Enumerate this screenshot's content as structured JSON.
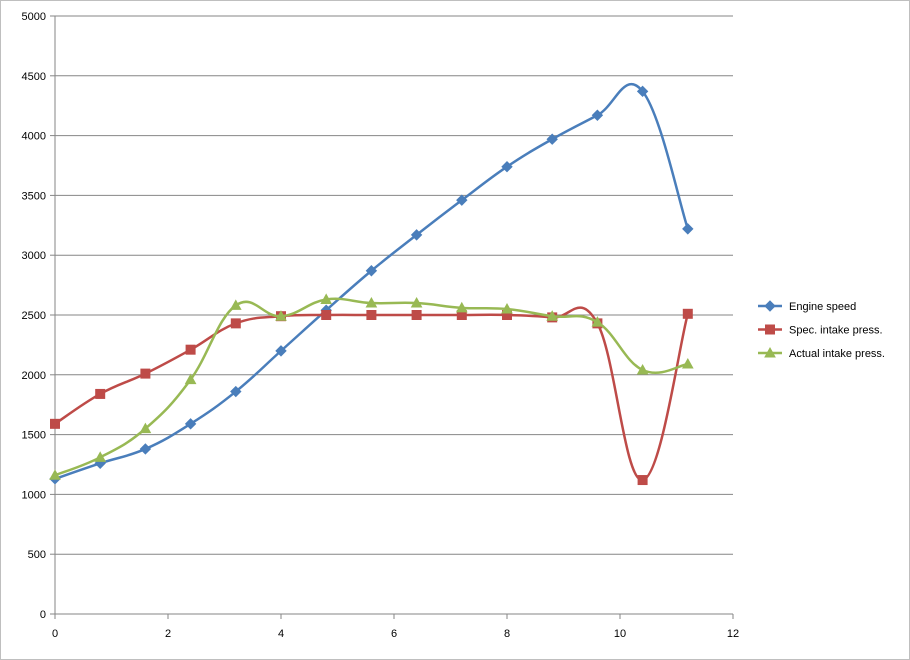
{
  "chart_data": {
    "type": "line",
    "smooth": true,
    "xlim": [
      0,
      12
    ],
    "ylim": [
      0,
      5000
    ],
    "x_ticks": [
      0,
      2,
      4,
      6,
      8,
      10,
      12
    ],
    "y_ticks": [
      0,
      500,
      1000,
      1500,
      2000,
      2500,
      3000,
      3500,
      4000,
      4500,
      5000
    ],
    "grid": "horizontal",
    "legend_position": "right",
    "x": [
      0,
      0.8,
      1.6,
      2.4,
      3.2,
      4.0,
      4.8,
      5.6,
      6.4,
      7.2,
      8.0,
      8.8,
      9.6,
      10.4,
      11.2
    ],
    "series": [
      {
        "name": "Engine speed",
        "color": "#4a7ebb",
        "marker": "diamond",
        "values": [
          1130,
          1260,
          1380,
          1590,
          1860,
          2200,
          2540,
          2870,
          3170,
          3460,
          3740,
          3970,
          4170,
          4370,
          3220
        ]
      },
      {
        "name": "Spec. intake press.",
        "color": "#be4b48",
        "marker": "square",
        "values": [
          1590,
          1840,
          2010,
          2210,
          2430,
          2490,
          2500,
          2500,
          2500,
          2500,
          2500,
          2480,
          2430,
          1120,
          2510
        ]
      },
      {
        "name": "Actual intake press.",
        "color": "#98b954",
        "marker": "triangle",
        "values": [
          1160,
          1310,
          1550,
          1960,
          2580,
          2490,
          2630,
          2600,
          2600,
          2560,
          2550,
          2490,
          2440,
          2040,
          2090
        ]
      }
    ]
  }
}
